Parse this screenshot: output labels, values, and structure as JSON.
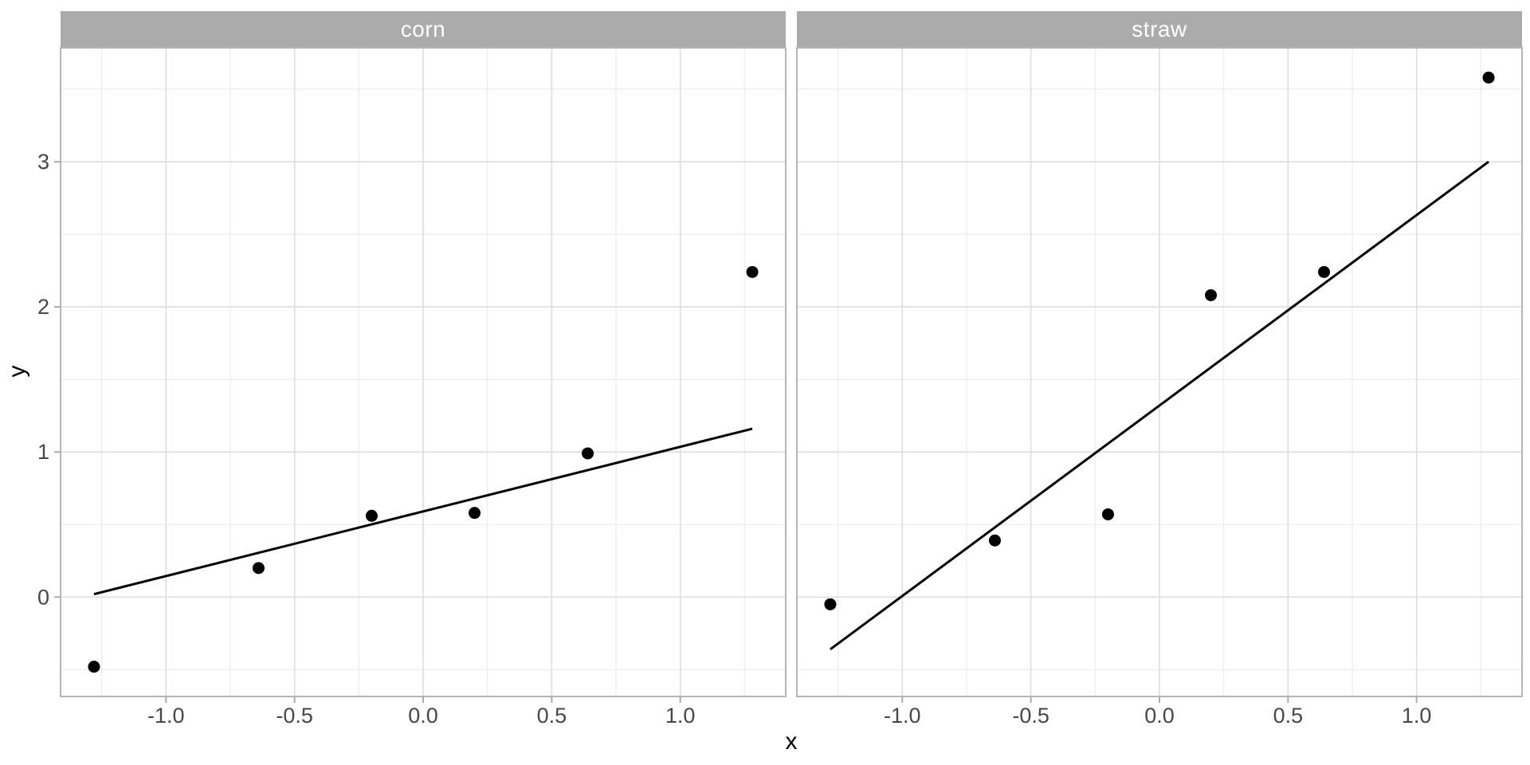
{
  "chart_data": {
    "type": "scatter",
    "title": "",
    "xlabel": "x",
    "ylabel": "y",
    "xlim": [
      -1.41,
      1.41
    ],
    "ylim": [
      -0.685,
      3.785
    ],
    "x_ticks": [
      -1.0,
      -0.5,
      0.0,
      0.5,
      1.0
    ],
    "x_tick_labels": [
      "-1.0",
      "-0.5",
      "0.0",
      "0.5",
      "1.0"
    ],
    "x_minor_ticks": [
      -1.25,
      -0.75,
      -0.25,
      0.25,
      0.75,
      1.25
    ],
    "y_ticks": [
      0,
      1,
      2,
      3
    ],
    "y_tick_labels": [
      "0",
      "1",
      "2",
      "3"
    ],
    "y_minor_ticks": [
      -0.5,
      0.5,
      1.5,
      2.5,
      3.5
    ],
    "grid": "major+minor",
    "legend": "none",
    "facets": [
      {
        "label": "corn",
        "x": [
          -1.28,
          -0.64,
          -0.2,
          0.2,
          0.64,
          1.28
        ],
        "y": [
          -0.48,
          0.2,
          0.56,
          0.58,
          0.99,
          2.24
        ],
        "line": {
          "x1": -1.28,
          "y1": 0.02,
          "x2": 1.28,
          "y2": 1.16
        }
      },
      {
        "label": "straw",
        "x": [
          -1.28,
          -0.64,
          -0.2,
          0.2,
          0.64,
          1.28
        ],
        "y": [
          -0.05,
          0.39,
          0.57,
          2.08,
          2.24,
          3.58
        ],
        "line": {
          "x1": -1.28,
          "y1": -0.36,
          "x2": 1.28,
          "y2": 3.0
        }
      }
    ],
    "colors": {
      "strip_fill": "#ABABAB",
      "strip_text": "#FFFFFF",
      "panel_bg": "#FFFFFF",
      "panel_border": "#B5B5B5",
      "grid_major": "#DDDDDD",
      "grid_minor": "#EBEBEB",
      "tick_mark": "#ACACAC",
      "tick_label": "#474747",
      "axis_title": "#000000",
      "point": "#000000",
      "line": "#000000"
    }
  }
}
